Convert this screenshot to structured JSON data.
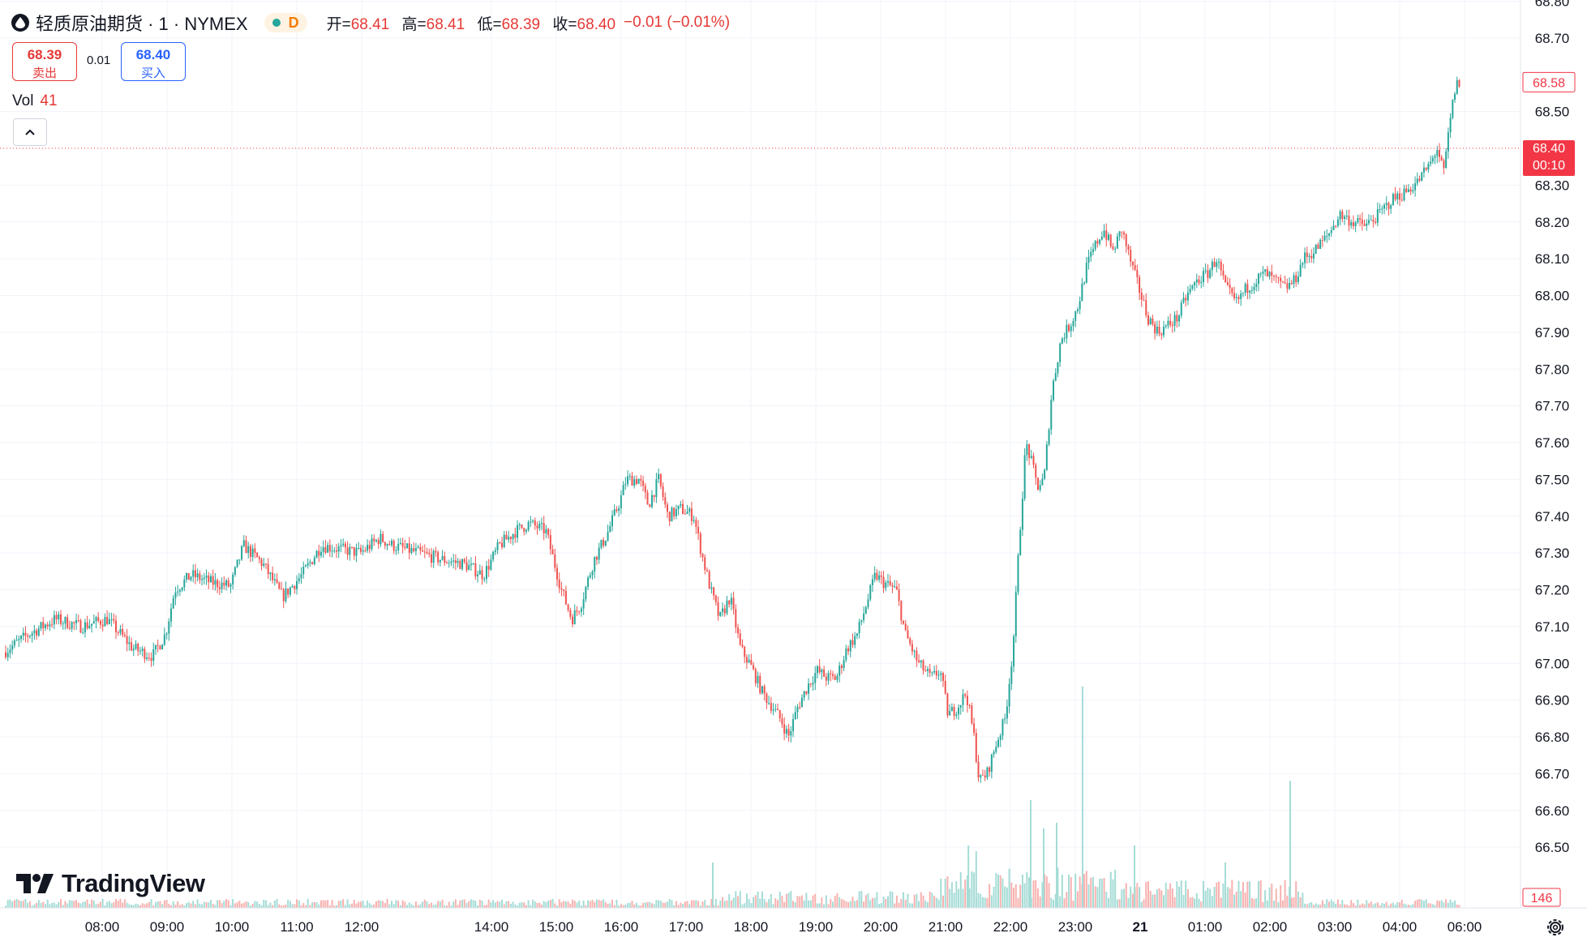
{
  "header": {
    "title": "轻质原油期货 · 1 · NYMEX",
    "interval_badge": "D",
    "ohlc": [
      {
        "label": "开=",
        "value": "68.41"
      },
      {
        "label": "高=",
        "value": "68.41"
      },
      {
        "label": "低=",
        "value": "68.39"
      },
      {
        "label": "收=",
        "value": "68.40"
      }
    ],
    "change": "−0.01 (−0.01%)"
  },
  "trade": {
    "sell_price": "68.39",
    "sell_label": "卖出",
    "spread": "0.01",
    "buy_price": "68.40",
    "buy_label": "买入"
  },
  "volume": {
    "label": "Vol",
    "value": "41",
    "axis_label": "146"
  },
  "logo": "TradingView",
  "colors": {
    "up": "#26a69a",
    "down": "#ef5350",
    "price_line": "#f23645"
  },
  "chart_data": {
    "type": "candlestick",
    "title": "",
    "xlabel": "",
    "ylabel": "",
    "ylim": [
      66.45,
      68.85
    ],
    "y_ticks": [
      68.8,
      68.7,
      68.5,
      68.3,
      68.2,
      68.1,
      68.0,
      67.9,
      67.8,
      67.7,
      67.6,
      67.5,
      67.4,
      67.3,
      67.2,
      67.1,
      67.0,
      66.9,
      66.8,
      66.7,
      66.6,
      66.5
    ],
    "x_ticks": [
      {
        "label": "08:00",
        "x": 0.075
      },
      {
        "label": "09:00",
        "x": 0.125
      },
      {
        "label": "10:00",
        "x": 0.175
      },
      {
        "label": "11:00",
        "x": 0.225
      },
      {
        "label": "12:00",
        "x": 0.275
      },
      {
        "label": "14:00",
        "x": 0.375
      },
      {
        "label": "15:00",
        "x": 0.425
      },
      {
        "label": "16:00",
        "x": 0.475
      },
      {
        "label": "17:00",
        "x": 0.525
      },
      {
        "label": "18:00",
        "x": 0.575
      },
      {
        "label": "19:00",
        "x": 0.625
      },
      {
        "label": "20:00",
        "x": 0.675
      },
      {
        "label": "21:00",
        "x": 0.725
      },
      {
        "label": "22:00",
        "x": 0.775
      },
      {
        "label": "23:00",
        "x": 0.825
      },
      {
        "label": "21",
        "x": 0.875,
        "bold": true
      },
      {
        "label": "01:00",
        "x": 0.925
      },
      {
        "label": "02:00",
        "x": 0.975
      },
      {
        "label": "03:00",
        "x": 1.025
      },
      {
        "label": "04:00",
        "x": 1.075
      },
      {
        "label": "06:00",
        "x": 1.125
      }
    ],
    "price_path": [
      [
        0.0,
        67.03
      ],
      [
        0.02,
        67.08
      ],
      [
        0.04,
        67.12
      ],
      [
        0.06,
        67.1
      ],
      [
        0.08,
        67.12
      ],
      [
        0.1,
        67.04
      ],
      [
        0.115,
        67.02
      ],
      [
        0.125,
        67.08
      ],
      [
        0.132,
        67.2
      ],
      [
        0.145,
        67.24
      ],
      [
        0.16,
        67.22
      ],
      [
        0.175,
        67.21
      ],
      [
        0.185,
        67.32
      ],
      [
        0.2,
        67.27
      ],
      [
        0.215,
        67.18
      ],
      [
        0.23,
        67.24
      ],
      [
        0.245,
        67.32
      ],
      [
        0.26,
        67.31
      ],
      [
        0.275,
        67.3
      ],
      [
        0.29,
        67.34
      ],
      [
        0.3,
        67.32
      ],
      [
        0.32,
        67.3
      ],
      [
        0.34,
        67.28
      ],
      [
        0.355,
        67.27
      ],
      [
        0.37,
        67.24
      ],
      [
        0.382,
        67.32
      ],
      [
        0.395,
        67.36
      ],
      [
        0.405,
        67.38
      ],
      [
        0.418,
        67.36
      ],
      [
        0.43,
        67.2
      ],
      [
        0.438,
        67.12
      ],
      [
        0.445,
        67.16
      ],
      [
        0.455,
        67.28
      ],
      [
        0.465,
        67.35
      ],
      [
        0.475,
        67.44
      ],
      [
        0.48,
        67.5
      ],
      [
        0.49,
        67.5
      ],
      [
        0.497,
        67.43
      ],
      [
        0.505,
        67.5
      ],
      [
        0.512,
        67.4
      ],
      [
        0.522,
        67.42
      ],
      [
        0.532,
        67.4
      ],
      [
        0.538,
        67.3
      ],
      [
        0.545,
        67.2
      ],
      [
        0.552,
        67.12
      ],
      [
        0.56,
        67.18
      ],
      [
        0.568,
        67.04
      ],
      [
        0.575,
        67.0
      ],
      [
        0.585,
        66.92
      ],
      [
        0.593,
        66.88
      ],
      [
        0.6,
        66.84
      ],
      [
        0.605,
        66.8
      ],
      [
        0.612,
        66.88
      ],
      [
        0.62,
        66.94
      ],
      [
        0.627,
        66.98
      ],
      [
        0.635,
        66.96
      ],
      [
        0.642,
        66.96
      ],
      [
        0.65,
        67.04
      ],
      [
        0.658,
        67.08
      ],
      [
        0.665,
        67.16
      ],
      [
        0.672,
        67.24
      ],
      [
        0.678,
        67.22
      ],
      [
        0.688,
        67.2
      ],
      [
        0.695,
        67.08
      ],
      [
        0.705,
        67.0
      ],
      [
        0.715,
        66.96
      ],
      [
        0.722,
        66.98
      ],
      [
        0.728,
        66.86
      ],
      [
        0.735,
        66.88
      ],
      [
        0.742,
        66.92
      ],
      [
        0.748,
        66.8
      ],
      [
        0.752,
        66.68
      ],
      [
        0.758,
        66.7
      ],
      [
        0.765,
        66.78
      ],
      [
        0.772,
        66.85
      ],
      [
        0.778,
        67.04
      ],
      [
        0.783,
        67.34
      ],
      [
        0.788,
        67.6
      ],
      [
        0.792,
        67.55
      ],
      [
        0.797,
        67.48
      ],
      [
        0.802,
        67.5
      ],
      [
        0.808,
        67.74
      ],
      [
        0.815,
        67.88
      ],
      [
        0.822,
        67.92
      ],
      [
        0.828,
        67.97
      ],
      [
        0.835,
        68.08
      ],
      [
        0.842,
        68.14
      ],
      [
        0.848,
        68.18
      ],
      [
        0.855,
        68.12
      ],
      [
        0.862,
        68.18
      ],
      [
        0.868,
        68.1
      ],
      [
        0.875,
        68.02
      ],
      [
        0.882,
        67.94
      ],
      [
        0.89,
        67.9
      ],
      [
        0.898,
        67.92
      ],
      [
        0.905,
        67.94
      ],
      [
        0.912,
        68.0
      ],
      [
        0.92,
        68.04
      ],
      [
        0.928,
        68.06
      ],
      [
        0.935,
        68.1
      ],
      [
        0.942,
        68.02
      ],
      [
        0.95,
        67.98
      ],
      [
        0.958,
        68.02
      ],
      [
        0.965,
        68.04
      ],
      [
        0.972,
        68.06
      ],
      [
        0.98,
        68.04
      ],
      [
        0.988,
        68.02
      ],
      [
        0.995,
        68.04
      ],
      [
        1.002,
        68.1
      ],
      [
        1.01,
        68.12
      ],
      [
        1.02,
        68.16
      ],
      [
        1.03,
        68.22
      ],
      [
        1.04,
        68.2
      ],
      [
        1.05,
        68.19
      ],
      [
        1.06,
        68.22
      ],
      [
        1.07,
        68.26
      ],
      [
        1.08,
        68.28
      ],
      [
        1.09,
        68.31
      ],
      [
        1.1,
        68.36
      ],
      [
        1.105,
        68.4
      ],
      [
        1.11,
        68.33
      ],
      [
        1.113,
        68.42
      ],
      [
        1.118,
        68.55
      ],
      [
        1.121,
        68.58
      ]
    ],
    "volume_spikes": [
      {
        "x": 0.545,
        "v": 40
      },
      {
        "x": 0.742,
        "v": 55
      },
      {
        "x": 0.748,
        "v": 50
      },
      {
        "x": 0.79,
        "v": 95
      },
      {
        "x": 0.8,
        "v": 70
      },
      {
        "x": 0.81,
        "v": 75
      },
      {
        "x": 0.83,
        "v": 195
      },
      {
        "x": 0.87,
        "v": 55
      },
      {
        "x": 0.94,
        "v": 40
      },
      {
        "x": 0.99,
        "v": 112
      }
    ],
    "volume_ylim": [
      0,
      200
    ],
    "current_price": 68.4,
    "current_price_label": "68.40",
    "countdown": "00:10",
    "high_label": "68.58",
    "grid": true,
    "legend": "none"
  }
}
